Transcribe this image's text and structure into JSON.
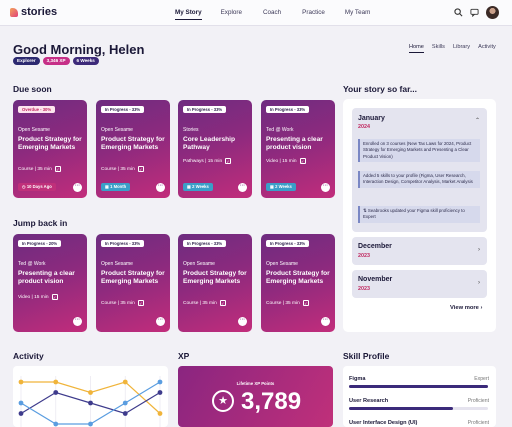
{
  "app": {
    "logo_text": "stories"
  },
  "nav": {
    "items": [
      "My Story",
      "Explore",
      "Coach",
      "Practice",
      "My Team"
    ]
  },
  "topbar_icons": {
    "search": "search-icon",
    "messages": "chat-icon",
    "notifications": "bell-icon",
    "profile": "avatar"
  },
  "greeting": "Good Morning, Helen",
  "badges": [
    {
      "label": "Explorer",
      "color": "#2c2970"
    },
    {
      "label": "3,346 XP",
      "color": "#c62f87"
    },
    {
      "label": "6 Weeks",
      "color": "#3d2a7a"
    }
  ],
  "subnav": [
    "Home",
    "Skills",
    "Library",
    "Activity"
  ],
  "sections": {
    "due_soon": "Due soon",
    "jump_back": "Jump back in",
    "story": "Your story so far...",
    "activity": "Activity",
    "xp": "XP",
    "skill_profile": "Skill Profile"
  },
  "due_soon_cards": [
    {
      "tag": "Overdue - 30%",
      "provider": "Open Sesame",
      "title": "Product Strategy for Emerging Markets",
      "meta": "Course | 35 min",
      "pill": "10 Days Ago",
      "pill_color": "#c0307a"
    },
    {
      "tag": "In Progress - 33%",
      "provider": "Open Sesame",
      "title": "Product Strategy for Emerging Markets",
      "meta": "Course | 35 min",
      "pill": "1 Month",
      "pill_color": "#3a9fc8"
    },
    {
      "tag": "In Progress - 33%",
      "provider": "Stories",
      "title": "Core Leadership Pathway",
      "meta": "Pathways | 15 min",
      "pill": "2 Weeks",
      "pill_color": "#3a9fc8"
    },
    {
      "tag": "In Progress - 33%",
      "provider": "Ted @ Work",
      "title": "Presenting a clear product vision",
      "meta": "Video | 15 min",
      "pill": "2 Weeks",
      "pill_color": "#3a9fc8"
    }
  ],
  "jump_back_cards": [
    {
      "tag": "In Progress - 20%",
      "provider": "Ted @ Work",
      "title": "Presenting a clear product vision",
      "meta": "Video | 15 min"
    },
    {
      "tag": "In Progress - 33%",
      "provider": "Open Sesame",
      "title": "Product Strategy for Emerging Markets",
      "meta": "Course | 35 min"
    },
    {
      "tag": "In Progress - 33%",
      "provider": "Open Sesame",
      "title": "Product Strategy for Emerging Markets",
      "meta": "Course | 35 min"
    },
    {
      "tag": "In Progress - 33%",
      "provider": "Open Sesame",
      "title": "Product Strategy for Emerging Markets",
      "meta": "Course | 35 min"
    }
  ],
  "story": {
    "months": [
      {
        "name": "January",
        "year": "2024",
        "expanded": true,
        "entries": [
          "Enrolled on 3 courses (New Tax Laws for 2024, Product Strategy for Emerging Markets and Presenting a Clear Product Vision)",
          "Added 5 skills to your profile (Figma, User Research, Interaction Design, Competitor Analysis, Market Analysis",
          "Seabrooks updated your Figma skill proficiency to Expert"
        ]
      },
      {
        "name": "December",
        "year": "2023",
        "expanded": false,
        "entries": []
      },
      {
        "name": "November",
        "year": "2023",
        "expanded": false,
        "entries": []
      }
    ],
    "view_more": "View more"
  },
  "xp": {
    "label": "Lifetime XP Points",
    "value": "3,789"
  },
  "skills": [
    {
      "name": "Figma",
      "level": "Expert",
      "fill": 1.0
    },
    {
      "name": "User Research",
      "level": "Proficient",
      "fill": 0.75
    },
    {
      "name": "User Interface Design (UI)",
      "level": "Proficient",
      "fill": 0.75
    }
  ],
  "activity_chart": {
    "series": [
      {
        "color": "#f0b43a",
        "values": [
          4,
          4,
          3,
          4,
          1
        ]
      },
      {
        "color": "#3e3b8c",
        "values": [
          1,
          3,
          2,
          1,
          3
        ]
      },
      {
        "color": "#5a9de0",
        "values": [
          2,
          0,
          0,
          2,
          4
        ]
      }
    ]
  }
}
